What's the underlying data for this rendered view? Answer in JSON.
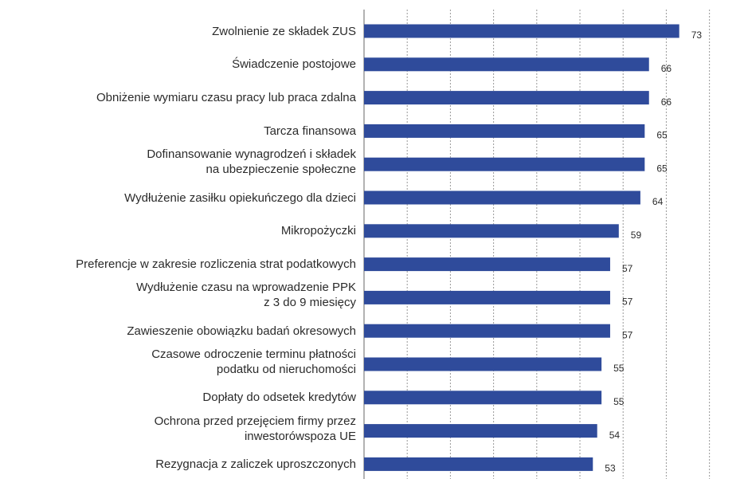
{
  "chart_data": {
    "type": "barh",
    "categories": [
      "Zwolnienie ze składek ZUS",
      "Świadczenie postojowe",
      "Obniżenie wymiaru czasu pracy lub praca zdalna",
      "Tarcza finansowa",
      "Dofinansowanie wynagrodzeń i składek\nna ubezpieczenie społeczne",
      "Wydłużenie zasiłku opiekuńczego dla dzieci",
      "Mikropożyczki",
      "Preferencje w zakresie rozliczenia strat podatkowych",
      "Wydłużenie czasu na wprowadzenie PPK\nz 3 do 9 miesięcy",
      "Zawieszenie obowiązku badań okresowych",
      "Czasowe odroczenie terminu płatności\npodatku od nieruchomości",
      "Dopłaty do odsetek kredytów",
      "Ochrona przed przejęciem firmy przez\ninwestorówspoza UE",
      "Rezygnacja z zaliczek uproszczonych"
    ],
    "values": [
      73,
      66,
      66,
      65,
      65,
      64,
      59,
      57,
      57,
      57,
      55,
      55,
      54,
      53
    ],
    "color": "#2f4b9b",
    "xlim": [
      0,
      88
    ],
    "xticks": [
      10,
      20,
      30,
      40,
      50,
      60,
      70,
      80
    ],
    "grid": true
  }
}
